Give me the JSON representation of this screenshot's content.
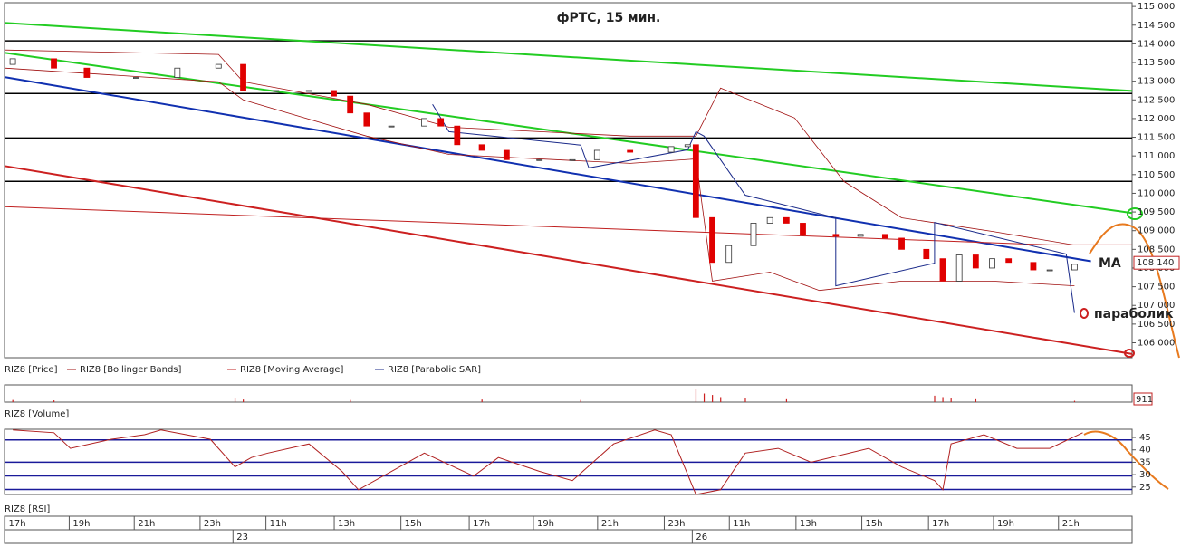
{
  "chart_data": [
    {
      "type": "candlestick",
      "title": "фРТС, 15 мин.",
      "name": "RIZ8 [Price]",
      "x": [
        1,
        6,
        10,
        16,
        21,
        26,
        29,
        33,
        37,
        40,
        42,
        44,
        47,
        51,
        53,
        55,
        58,
        61,
        65,
        69,
        72,
        76,
        81,
        83,
        84,
        86,
        88,
        91,
        93,
        95,
        97,
        101,
        104,
        107,
        109,
        112,
        114,
        116,
        118,
        120,
        122,
        125,
        127,
        130
      ],
      "open": [
        113450,
        113600,
        113350,
        113100,
        113100,
        113350,
        113450,
        112750,
        112750,
        112750,
        112600,
        112150,
        111800,
        111800,
        112000,
        111800,
        111300,
        111150,
        110900,
        110900,
        110900,
        111150,
        111100,
        111250,
        111300,
        109350,
        108150,
        108600,
        109200,
        109350,
        109200,
        108900,
        108850,
        108900,
        108800,
        108500,
        108250,
        107650,
        108350,
        108000,
        108250,
        108150,
        107950,
        107950
      ],
      "close": [
        113600,
        113350,
        113100,
        113100,
        113350,
        113450,
        112750,
        112750,
        112750,
        112600,
        112150,
        111800,
        111800,
        112000,
        111800,
        111300,
        111150,
        110900,
        110900,
        110900,
        111150,
        111100,
        111250,
        111300,
        109350,
        108150,
        108600,
        109200,
        109350,
        109200,
        108900,
        108850,
        108900,
        108800,
        108500,
        108250,
        107650,
        108350,
        108000,
        108250,
        108150,
        107950,
        107950,
        108100
      ],
      "up_color": "#ffffff",
      "down_color": "#e00000",
      "series": [
        {
          "name": "RIZ8 [Bollinger Bands]",
          "color": "#a01010",
          "lines": [
            {
              "x": [
                0,
                26,
                29,
                44,
                54,
                76,
                84,
                87,
                96,
                102,
                109,
                120,
                130
              ],
              "values": [
                113835,
                113715,
                112985,
                112380,
                111770,
                111530,
                111530,
                112815,
                112015,
                110315,
                109345,
                108980,
                108615
              ]
            },
            {
              "x": [
                0,
                26,
                29,
                44,
                54,
                76,
                84,
                86,
                93,
                99,
                109,
                120,
                130
              ],
              "values": [
                113350,
                112985,
                112500,
                111530,
                111040,
                110800,
                110920,
                107650,
                107890,
                107400,
                107650,
                107650,
                107525
              ]
            }
          ]
        },
        {
          "name": "RIZ8 [Moving Average]",
          "color": "#c02020",
          "x": [
            0,
            127,
            137
          ],
          "values": [
            109640,
            108620,
            108620
          ]
        },
        {
          "name": "RIZ8 [Parabolic SAR]",
          "color": "#1a2a8a",
          "x": [
            52,
            54,
            70,
            71,
            83,
            84,
            85,
            90,
            101,
            101,
            113,
            113,
            129,
            130
          ],
          "values": [
            112380,
            111650,
            111290,
            110680,
            111165,
            111650,
            111530,
            109950,
            109345,
            107525,
            108130,
            109220,
            108375,
            106800
          ]
        }
      ],
      "trend_lines": [
        {
          "color": "#22cc22",
          "x": [
            0,
            137
          ],
          "values": [
            114560,
            112740
          ]
        },
        {
          "color": "#22cc22",
          "x": [
            0,
            137
          ],
          "values": [
            113760,
            109470
          ]
        },
        {
          "color": "#1030b0",
          "x": [
            0,
            132
          ],
          "values": [
            113110,
            108180
          ]
        },
        {
          "color": "#cc2020",
          "x": [
            0,
            137
          ],
          "values": [
            110730,
            105700
          ]
        }
      ],
      "levels": [
        114080,
        112670,
        111480,
        110320
      ],
      "last_price": {
        "value": 108140,
        "label": "108 140"
      },
      "annotations": [
        "MA",
        "параболик"
      ],
      "xlim": [
        0,
        137
      ],
      "ylim": [
        105600,
        115100
      ],
      "yticks": [
        {
          "value": 106000,
          "label": "106 000"
        },
        {
          "value": 106500,
          "label": "106 500"
        },
        {
          "value": 107000,
          "label": "107 000"
        },
        {
          "value": 107500,
          "label": "107 500"
        },
        {
          "value": 108000,
          "label": "108 000"
        },
        {
          "value": 108500,
          "label": "108 500"
        },
        {
          "value": 109000,
          "label": "109 000"
        },
        {
          "value": 109500,
          "label": "109 500"
        },
        {
          "value": 110000,
          "label": "110 000"
        },
        {
          "value": 110500,
          "label": "110 500"
        },
        {
          "value": 111000,
          "label": "111 000"
        },
        {
          "value": 111500,
          "label": "111 500"
        },
        {
          "value": 112000,
          "label": "112 000"
        },
        {
          "value": 112500,
          "label": "112 500"
        },
        {
          "value": 113000,
          "label": "113 000"
        },
        {
          "value": 113500,
          "label": "113 500"
        },
        {
          "value": 114000,
          "label": "114 000"
        },
        {
          "value": 114500,
          "label": "114 500"
        },
        {
          "value": 115000,
          "label": "115 000"
        }
      ],
      "xticks": [
        {
          "value": 0.5,
          "label": "17h"
        },
        {
          "value": 8.3,
          "label": "19h"
        },
        {
          "value": 16.2,
          "label": "21h"
        },
        {
          "value": 24.2,
          "label": "23h"
        },
        {
          "value": 32.2,
          "label": "11h"
        },
        {
          "value": 40.5,
          "label": "13h"
        },
        {
          "value": 48.6,
          "label": "15h"
        },
        {
          "value": 56.9,
          "label": "17h"
        },
        {
          "value": 64.7,
          "label": "19h"
        },
        {
          "value": 72.5,
          "label": "21h"
        },
        {
          "value": 80.6,
          "label": "23h"
        },
        {
          "value": 88.5,
          "label": "11h"
        },
        {
          "value": 96.6,
          "label": "13h"
        },
        {
          "value": 104.6,
          "label": "15h"
        },
        {
          "value": 112.7,
          "label": "17h"
        },
        {
          "value": 120.6,
          "label": "19h"
        },
        {
          "value": 128.5,
          "label": "21h"
        }
      ],
      "date_ticks": [
        {
          "value": 28.2,
          "label": "23"
        },
        {
          "value": 84,
          "label": "26"
        }
      ]
    },
    {
      "type": "bar",
      "title": "RIZ8 [Volume]",
      "color": "#cc2020",
      "x": [
        1,
        6,
        28,
        29,
        42,
        58,
        70,
        84,
        85,
        86,
        87,
        90,
        95,
        113,
        114,
        115,
        118,
        130
      ],
      "values": [
        1500,
        1200,
        2500,
        1800,
        1500,
        1800,
        1500,
        9000,
        6000,
        5000,
        3500,
        2500,
        2000,
        4500,
        3500,
        2500,
        2000,
        911
      ],
      "xlim": [
        0,
        137
      ],
      "ylim": [
        0,
        12000
      ]
    },
    {
      "type": "line",
      "title": "RIZ8 [RSI]",
      "color": "#b02020",
      "x": [
        1,
        6,
        8,
        13,
        17,
        19,
        25,
        28,
        30,
        32,
        37,
        41,
        43,
        48,
        51,
        57,
        60,
        65,
        69,
        74,
        79,
        81,
        84,
        87,
        90,
        94,
        98,
        105,
        109,
        113,
        114,
        115,
        119,
        123,
        127,
        131
      ],
      "values": [
        48,
        46.9,
        40.6,
        44.3,
        46.1,
        48,
        44.3,
        33.1,
        36.9,
        38.7,
        42.4,
        31.3,
        23.9,
        33.1,
        38.7,
        29.4,
        36.9,
        31.3,
        27.6,
        42.4,
        48,
        46.1,
        22,
        23.9,
        38.7,
        40.6,
        35,
        40.6,
        33.1,
        27.6,
        23.9,
        42.4,
        46.1,
        40.6,
        40.6,
        46.9
      ],
      "levels": [
        44,
        35,
        29.5,
        24
      ],
      "level_color": "#1a1a9a",
      "xlim": [
        0,
        137
      ],
      "ylim": [
        22,
        48.3
      ],
      "yticks": [
        45,
        40,
        35,
        30,
        25
      ]
    }
  ]
}
